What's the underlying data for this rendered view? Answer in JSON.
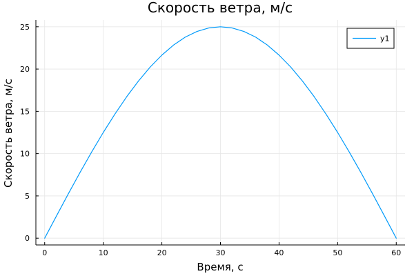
{
  "chart_data": {
    "type": "line",
    "title": "Скорость ветра, м/с",
    "xlabel": "Время, с",
    "ylabel": "Скорость ветра, м/с",
    "xlim": [
      -1.5,
      61.5
    ],
    "ylim": [
      -0.8,
      25.8
    ],
    "xticks": [
      0,
      10,
      20,
      30,
      40,
      50,
      60
    ],
    "yticks": [
      0,
      5,
      10,
      15,
      20,
      25
    ],
    "grid": true,
    "legend_position": "top-right",
    "series": [
      {
        "name": "y1",
        "color": "#009AFA",
        "x": [
          0,
          2,
          4,
          6,
          8,
          10,
          12,
          14,
          16,
          18,
          20,
          22,
          24,
          26,
          28,
          30,
          32,
          34,
          36,
          38,
          40,
          42,
          44,
          46,
          48,
          50,
          52,
          54,
          56,
          58,
          60
        ],
        "y": [
          0,
          2.61,
          5.2,
          7.73,
          10.17,
          12.5,
          14.69,
          16.73,
          18.58,
          20.23,
          21.65,
          22.84,
          23.78,
          24.45,
          24.86,
          25,
          24.86,
          24.45,
          23.78,
          22.84,
          21.65,
          20.23,
          18.58,
          16.73,
          14.69,
          12.5,
          10.17,
          7.73,
          5.2,
          2.61,
          0
        ]
      }
    ]
  }
}
